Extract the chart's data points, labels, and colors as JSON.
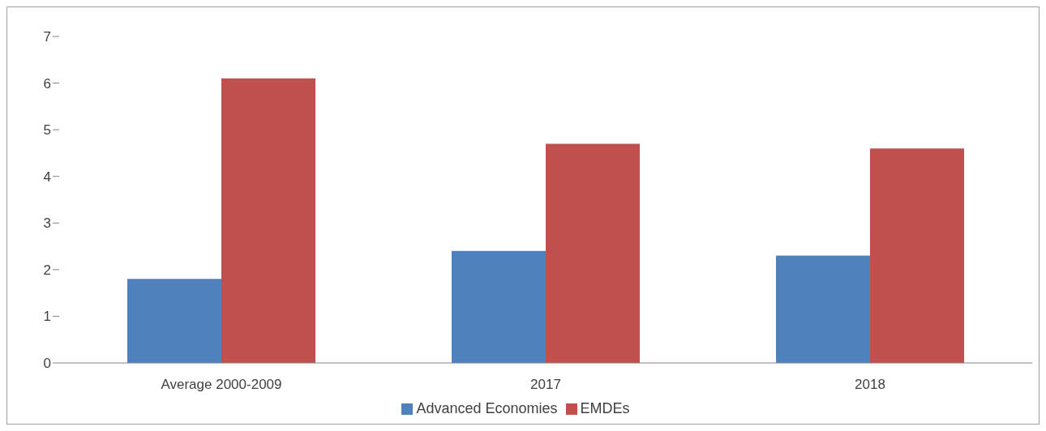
{
  "chart_data": {
    "type": "bar",
    "categories": [
      "Average 2000-2009",
      "2017",
      "2018"
    ],
    "series": [
      {
        "name": "Advanced Economies",
        "color": "#4f81bd",
        "values": [
          1.8,
          2.4,
          2.3
        ]
      },
      {
        "name": "EMDEs",
        "color": "#c0504d",
        "values": [
          6.1,
          4.7,
          4.6
        ]
      }
    ],
    "ylim": [
      0,
      7
    ],
    "yticks": [
      0,
      1,
      2,
      3,
      4,
      5,
      6,
      7
    ],
    "grid": false,
    "legend": "bottom"
  }
}
